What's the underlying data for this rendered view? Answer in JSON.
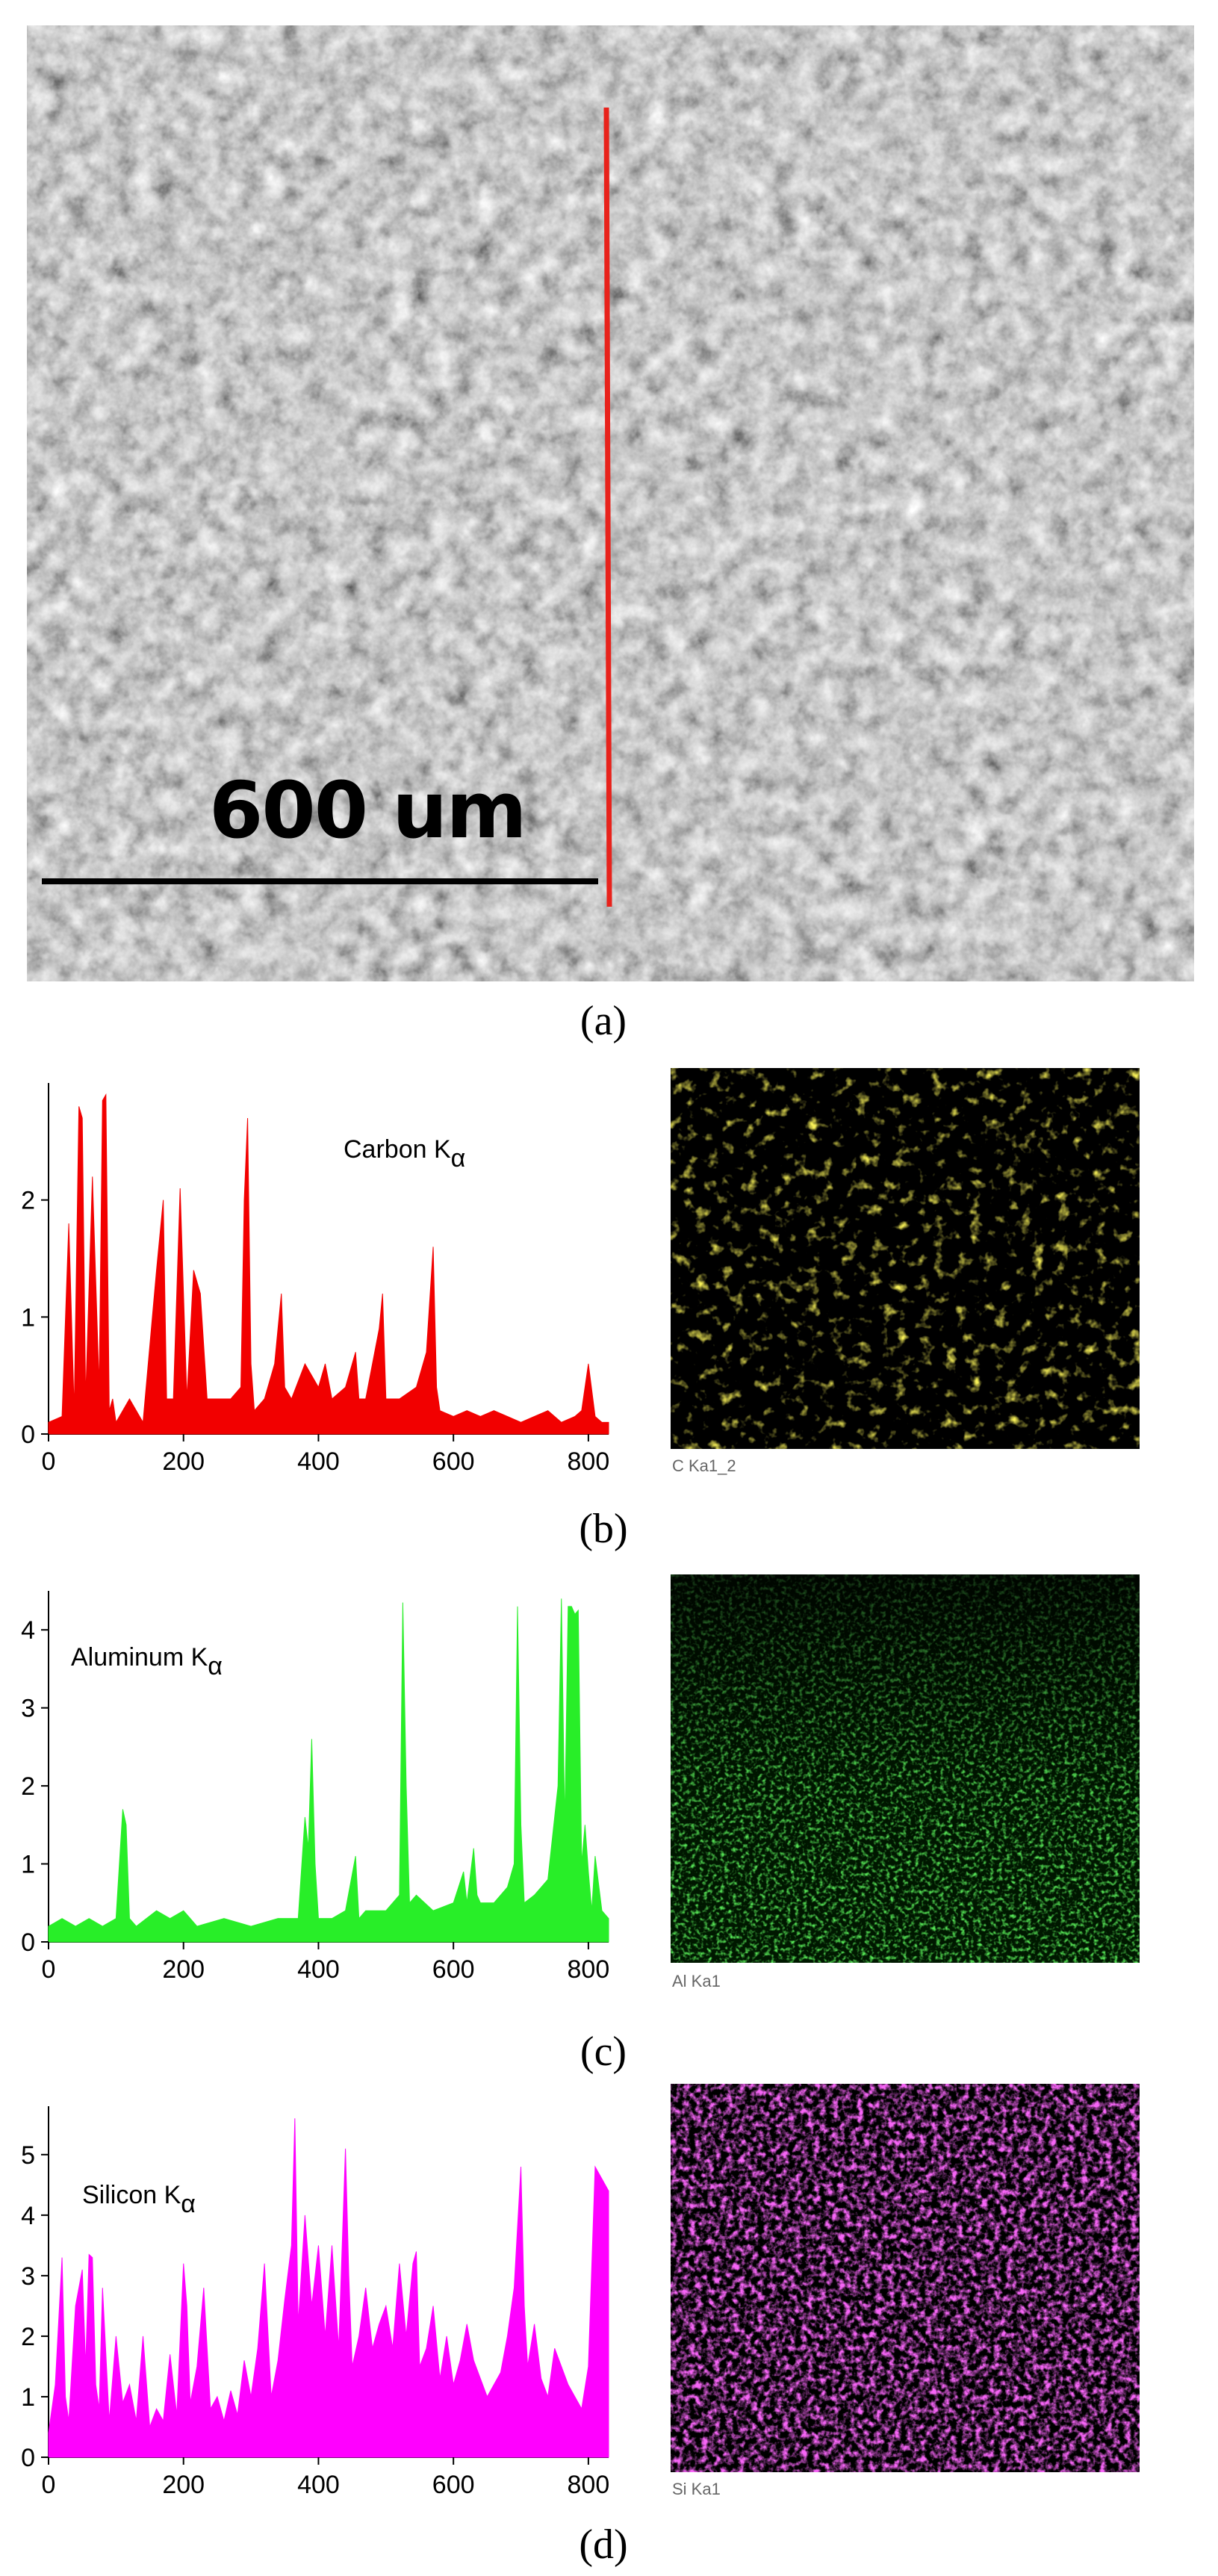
{
  "panel_a": {
    "scale_bar_label": "600 um",
    "caption": "(a)",
    "line_color": "#e8221b"
  },
  "panel_b": {
    "caption": "(b)",
    "map_label": "C Ka1_2",
    "map_color": "#f2e21b",
    "chart_label": "Carbon K"
  },
  "panel_c": {
    "caption": "(c)",
    "map_label": "Al Ka1",
    "map_color": "#22ee22",
    "chart_label": "Aluminum K"
  },
  "panel_d": {
    "caption": "(d)",
    "map_label": "Si Ka1",
    "map_color": "#ee22ee",
    "chart_label": "Silicon K"
  },
  "chart_data": [
    {
      "type": "area",
      "series": [
        {
          "name": "Carbon Kα",
          "color": "#f20000",
          "x": [
            0,
            20,
            30,
            38,
            45,
            50,
            55,
            65,
            75,
            80,
            85,
            90,
            95,
            100,
            120,
            140,
            160,
            170,
            175,
            185,
            195,
            200,
            205,
            215,
            225,
            235,
            250,
            270,
            285,
            290,
            295,
            300,
            305,
            320,
            335,
            345,
            350,
            360,
            380,
            400,
            410,
            420,
            440,
            455,
            460,
            470,
            490,
            495,
            500,
            510,
            520,
            545,
            560,
            570,
            575,
            580,
            600,
            620,
            640,
            660,
            680,
            700,
            720,
            740,
            760,
            780,
            790,
            800,
            810,
            820,
            830
          ],
          "values": [
            0.1,
            0.15,
            1.8,
            0.2,
            2.8,
            2.7,
            0.3,
            2.2,
            0.4,
            2.85,
            2.9,
            0.2,
            0.3,
            0.1,
            0.3,
            0.1,
            1.4,
            2.0,
            0.3,
            0.3,
            2.1,
            1.2,
            0.3,
            1.4,
            1.2,
            0.3,
            0.3,
            0.3,
            0.4,
            2.0,
            2.7,
            0.6,
            0.2,
            0.3,
            0.6,
            1.2,
            0.4,
            0.3,
            0.6,
            0.4,
            0.6,
            0.3,
            0.4,
            0.7,
            0.3,
            0.3,
            0.9,
            1.2,
            0.3,
            0.3,
            0.3,
            0.4,
            0.7,
            1.6,
            0.4,
            0.2,
            0.15,
            0.2,
            0.15,
            0.2,
            0.15,
            0.1,
            0.15,
            0.2,
            0.1,
            0.15,
            0.2,
            0.6,
            0.15,
            0.1,
            0.1
          ]
        }
      ],
      "xlim": [
        0,
        830
      ],
      "ylim": [
        0,
        3
      ],
      "xticks": [
        "0",
        "200",
        "400",
        "600",
        "800"
      ],
      "yticks": [
        "0",
        "1",
        "2"
      ]
    },
    {
      "type": "area",
      "series": [
        {
          "name": "Aluminum Kα",
          "color": "#28ee28",
          "x": [
            0,
            20,
            40,
            60,
            80,
            100,
            110,
            115,
            120,
            130,
            160,
            180,
            200,
            220,
            260,
            300,
            340,
            370,
            380,
            385,
            390,
            395,
            400,
            420,
            440,
            455,
            460,
            470,
            500,
            520,
            525,
            530,
            535,
            545,
            570,
            600,
            615,
            620,
            630,
            635,
            640,
            660,
            680,
            690,
            695,
            700,
            705,
            720,
            740,
            755,
            760,
            765,
            770,
            775,
            780,
            785,
            790,
            795,
            800,
            805,
            810,
            820,
            830
          ],
          "values": [
            0.2,
            0.3,
            0.2,
            0.3,
            0.2,
            0.3,
            1.7,
            1.5,
            0.3,
            0.2,
            0.4,
            0.3,
            0.4,
            0.2,
            0.3,
            0.2,
            0.3,
            0.3,
            1.6,
            1.2,
            2.6,
            1.0,
            0.3,
            0.3,
            0.4,
            1.1,
            0.3,
            0.4,
            0.4,
            0.6,
            4.35,
            2.0,
            0.5,
            0.6,
            0.4,
            0.5,
            0.9,
            0.5,
            1.2,
            0.6,
            0.5,
            0.5,
            0.7,
            1.0,
            4.3,
            1.5,
            0.5,
            0.6,
            0.8,
            2.0,
            4.4,
            1.5,
            4.3,
            4.3,
            4.2,
            4.25,
            1.0,
            1.5,
            0.9,
            0.4,
            1.1,
            0.4,
            0.3
          ]
        }
      ],
      "xlim": [
        0,
        830
      ],
      "ylim": [
        0,
        4.5
      ],
      "xticks": [
        "0",
        "200",
        "400",
        "600",
        "800"
      ],
      "yticks": [
        "0",
        "1",
        "2",
        "3",
        "4"
      ]
    },
    {
      "type": "area",
      "series": [
        {
          "name": "Silicon Kα",
          "color": "#ff00ff",
          "x": [
            0,
            10,
            20,
            25,
            30,
            40,
            50,
            55,
            60,
            65,
            70,
            75,
            80,
            90,
            100,
            110,
            120,
            130,
            140,
            150,
            160,
            170,
            180,
            190,
            200,
            205,
            210,
            220,
            230,
            240,
            250,
            260,
            270,
            280,
            290,
            300,
            310,
            320,
            330,
            340,
            350,
            360,
            365,
            370,
            380,
            390,
            400,
            410,
            420,
            430,
            440,
            445,
            450,
            460,
            470,
            480,
            490,
            500,
            510,
            520,
            530,
            540,
            545,
            550,
            560,
            570,
            580,
            590,
            600,
            610,
            620,
            630,
            640,
            650,
            660,
            670,
            680,
            690,
            700,
            705,
            710,
            720,
            730,
            740,
            750,
            760,
            770,
            780,
            790,
            800,
            810,
            820,
            825,
            830
          ],
          "values": [
            0.4,
            1.2,
            3.3,
            1.0,
            0.6,
            2.5,
            3.1,
            1.5,
            3.35,
            3.3,
            1.2,
            0.8,
            2.8,
            0.6,
            2.0,
            0.9,
            1.2,
            0.6,
            2.0,
            0.5,
            0.8,
            0.6,
            1.7,
            0.7,
            3.2,
            2.5,
            0.9,
            1.5,
            2.8,
            0.8,
            1.0,
            0.6,
            1.1,
            0.7,
            1.6,
            1.0,
            1.8,
            3.2,
            1.0,
            1.6,
            2.6,
            3.5,
            5.6,
            2.2,
            4.0,
            2.5,
            3.5,
            2.0,
            3.5,
            1.8,
            5.1,
            3.0,
            1.5,
            2.0,
            2.8,
            1.8,
            2.2,
            2.5,
            1.8,
            3.2,
            2.0,
            3.2,
            3.4,
            1.5,
            1.8,
            2.5,
            1.3,
            2.0,
            1.2,
            1.6,
            2.2,
            1.6,
            1.3,
            1.0,
            1.2,
            1.4,
            2.0,
            2.8,
            4.8,
            2.5,
            1.5,
            2.2,
            1.3,
            1.0,
            1.8,
            1.5,
            1.2,
            1.0,
            0.8,
            1.5,
            4.8,
            4.6,
            4.5,
            4.4
          ]
        }
      ],
      "xlim": [
        0,
        830
      ],
      "ylim": [
        0,
        5.8
      ],
      "xticks": [
        "0",
        "200",
        "400",
        "600",
        "800"
      ],
      "yticks": [
        "0",
        "1",
        "2",
        "3",
        "4",
        "5"
      ]
    }
  ]
}
